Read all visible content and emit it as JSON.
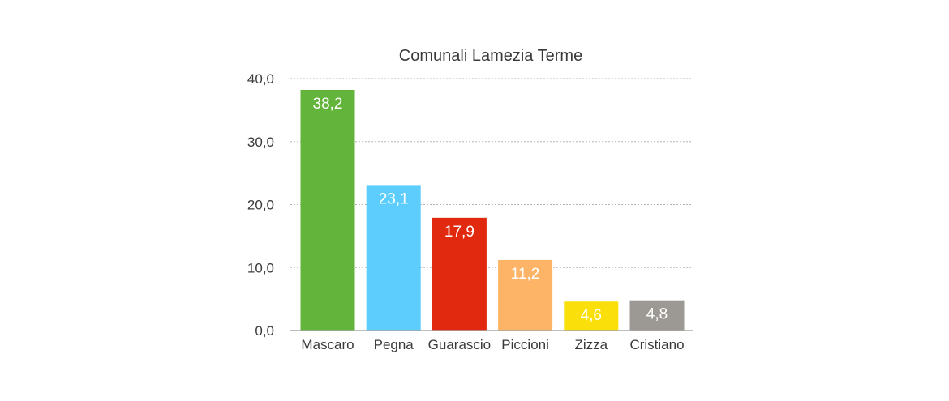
{
  "chart_data": {
    "type": "bar",
    "title": "Comunali Lamezia Terme",
    "xlabel": "",
    "ylabel": "",
    "ylim": [
      0,
      40
    ],
    "yticks": [
      0,
      10,
      20,
      30,
      40
    ],
    "ytick_labels": [
      "0,0",
      "10,0",
      "20,0",
      "30,0",
      "40,0"
    ],
    "grid": true,
    "legend": "none",
    "categories": [
      "Mascaro",
      "Pegna",
      "Guarascio",
      "Piccioni",
      "Zizza",
      "Cristiano"
    ],
    "values": [
      38.2,
      23.1,
      17.9,
      11.2,
      4.6,
      4.8
    ],
    "value_labels": [
      "38,2",
      "23,1",
      "17,9",
      "11,2",
      "4,6",
      "4,8"
    ],
    "colors": [
      "#63b43a",
      "#5ccdfc",
      "#e0290e",
      "#fdb466",
      "#fadf0b",
      "#9c9893"
    ]
  }
}
